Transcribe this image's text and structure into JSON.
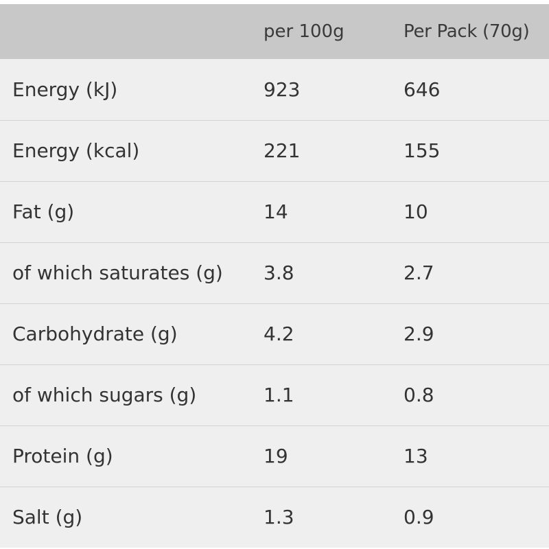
{
  "table": {
    "headers": [
      "",
      "per 100g",
      "Per Pack (70g)"
    ],
    "rows": [
      {
        "label": "Energy (kJ)",
        "per100": "923",
        "pack": "646"
      },
      {
        "label": "Energy (kcal)",
        "per100": "221",
        "pack": "155"
      },
      {
        "label": "Fat (g)",
        "per100": "14",
        "pack": "10"
      },
      {
        "label": "of which saturates (g)",
        "per100": "3.8",
        "pack": "2.7"
      },
      {
        "label": "Carbohydrate (g)",
        "per100": "4.2",
        "pack": "2.9"
      },
      {
        "label": "of which sugars (g)",
        "per100": "1.1",
        "pack": "0.8"
      },
      {
        "label": "Protein (g)",
        "per100": "19",
        "pack": "13"
      },
      {
        "label": "Salt (g)",
        "per100": "1.3",
        "pack": "0.9"
      }
    ]
  },
  "colors": {
    "header_bg": "#c8c8c8",
    "row_bg": "#efefef",
    "divider": "#d3d3d3",
    "text": "#333333"
  }
}
